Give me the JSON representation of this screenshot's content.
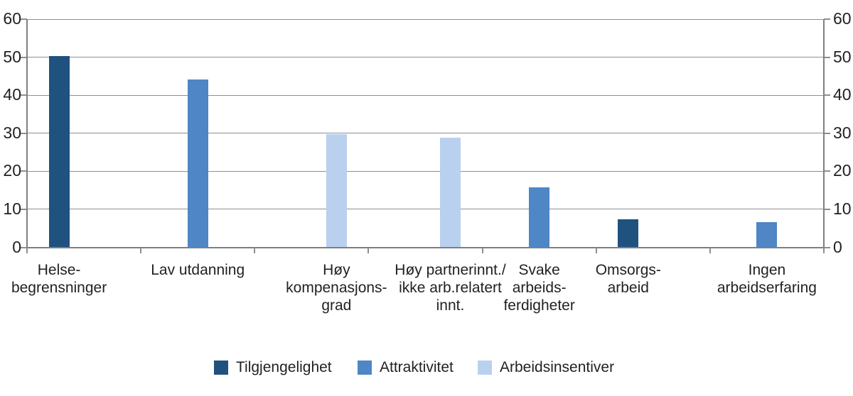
{
  "figure": {
    "background": "#ffffff",
    "text_color": "#231f20",
    "gridline_color": "#8f8f8f",
    "axis_color": "#7f7f7f"
  },
  "chart_data": {
    "type": "bar",
    "title": "",
    "xlabel": "",
    "ylabel": "",
    "ylim": [
      0,
      60
    ],
    "yticks": [
      0,
      10,
      20,
      30,
      40,
      50,
      60
    ],
    "grid": true,
    "y_axis_labels_both_sides": true,
    "legend_position": "bottom-center",
    "categories": [
      "Helse-\nbegrensninger",
      "Lav utdanning",
      "Høy\nkompenasjons-\ngrad",
      "Høy partnerinnt./\nikke arb.relatert\ninnt.",
      "Svake\narbeids-\nferdigheter",
      "Omsorgs-\narbeid",
      "Ingen\narbeidserfaring"
    ],
    "series": [
      {
        "name": "Tilgjengelighet",
        "color": "#1f527e",
        "values": [
          50.3,
          null,
          null,
          null,
          null,
          7.4,
          null
        ]
      },
      {
        "name": "Attraktivitet",
        "color": "#4e86c6",
        "values": [
          null,
          44.1,
          null,
          null,
          15.8,
          null,
          6.7
        ]
      },
      {
        "name": "Arbeidsinsentiver",
        "color": "#b9d1ee",
        "values": [
          null,
          null,
          29.8,
          28.9,
          null,
          null,
          null
        ]
      }
    ]
  }
}
